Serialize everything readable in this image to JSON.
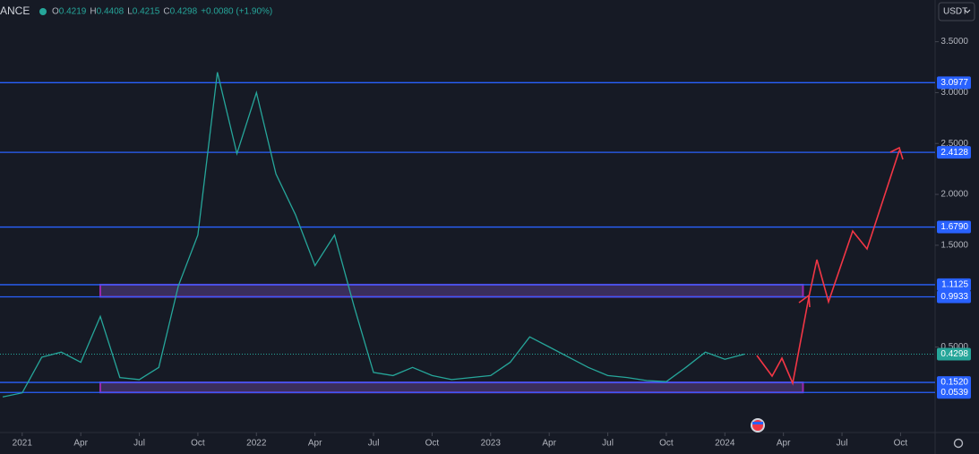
{
  "chart_data": {
    "type": "line",
    "symbol": "ANCE",
    "quote": [
      {
        "key": "O",
        "text": "0.4219"
      },
      {
        "key": "H",
        "text": "0.4408"
      },
      {
        "key": "L",
        "text": "0.4215"
      },
      {
        "key": "C",
        "text": "0.4298"
      },
      {
        "key": "",
        "text": "+0.0080 (+1.90%)"
      }
    ],
    "currency": "USDT",
    "xlim": [
      "2020-12",
      "2024-12"
    ],
    "ylim": [
      -0.34,
      3.91
    ],
    "xticks": [
      {
        "value": "2021-01",
        "label": "2021"
      },
      {
        "value": "2021-04",
        "label": "Apr"
      },
      {
        "value": "2021-07",
        "label": "Jul"
      },
      {
        "value": "2021-10",
        "label": "Oct"
      },
      {
        "value": "2022-01",
        "label": "2022"
      },
      {
        "value": "2022-04",
        "label": "Apr"
      },
      {
        "value": "2022-07",
        "label": "Jul"
      },
      {
        "value": "2022-10",
        "label": "Oct"
      },
      {
        "value": "2023-01",
        "label": "2023"
      },
      {
        "value": "2023-04",
        "label": "Apr"
      },
      {
        "value": "2023-07",
        "label": "Jul"
      },
      {
        "value": "2023-10",
        "label": "Oct"
      },
      {
        "value": "2024-01",
        "label": "2024"
      },
      {
        "value": "2024-04",
        "label": "Apr"
      },
      {
        "value": "2024-07",
        "label": "Jul"
      },
      {
        "value": "2024-10",
        "label": "Oct"
      }
    ],
    "yticks": [
      {
        "value": 3.5,
        "label": "3.5000"
      },
      {
        "value": 3.0,
        "label": "3.0000"
      },
      {
        "value": 2.5,
        "label": "2.5000"
      },
      {
        "value": 2.0,
        "label": "2.0000"
      },
      {
        "value": 1.5,
        "label": "1.5000"
      },
      {
        "value": 0.5,
        "label": "0.5000"
      }
    ],
    "levels": [
      {
        "value": 3.0977,
        "label": "3.0977"
      },
      {
        "value": 2.4128,
        "label": "2.4128"
      },
      {
        "value": 1.679,
        "label": "1.6790"
      },
      {
        "value": 1.1125,
        "label": "1.1125"
      },
      {
        "value": 0.9933,
        "label": "0.9933"
      },
      {
        "value": 0.152,
        "label": "0.1520"
      },
      {
        "value": 0.0539,
        "label": "0.0539"
      }
    ],
    "zones": [
      {
        "from": "2021-05",
        "to": "2024-05",
        "low": 0.9933,
        "high": 1.1125
      },
      {
        "from": "2021-05",
        "to": "2024-05",
        "low": 0.0539,
        "high": 0.152
      }
    ],
    "last_price": {
      "value": 0.4298,
      "label": "0.4298"
    },
    "series": [
      {
        "color": "#26a69a",
        "x": [
          "2020-12",
          "2021-01",
          "2021-02",
          "2021-03",
          "2021-04",
          "2021-05",
          "2021-06",
          "2021-07",
          "2021-08",
          "2021-09",
          "2021-10",
          "2021-11",
          "2021-12",
          "2022-01",
          "2022-02",
          "2022-03",
          "2022-04",
          "2022-05",
          "2022-06",
          "2022-07",
          "2022-08",
          "2022-09",
          "2022-10",
          "2022-11",
          "2022-12",
          "2023-01",
          "2023-02",
          "2023-03",
          "2023-04",
          "2023-05",
          "2023-06",
          "2023-07",
          "2023-08",
          "2023-09",
          "2023-10",
          "2023-11",
          "2023-12",
          "2024-01",
          "2024-02"
        ],
        "values": [
          0.01,
          0.05,
          0.4,
          0.45,
          0.35,
          0.8,
          0.2,
          0.18,
          0.3,
          1.1,
          1.6,
          3.2,
          2.4,
          3.0,
          2.2,
          1.8,
          1.3,
          1.6,
          0.9,
          0.25,
          0.22,
          0.3,
          0.22,
          0.18,
          0.2,
          0.22,
          0.35,
          0.6,
          0.5,
          0.4,
          0.3,
          0.22,
          0.2,
          0.17,
          0.16,
          0.3,
          0.45,
          0.38,
          0.43
        ]
      }
    ]
  }
}
